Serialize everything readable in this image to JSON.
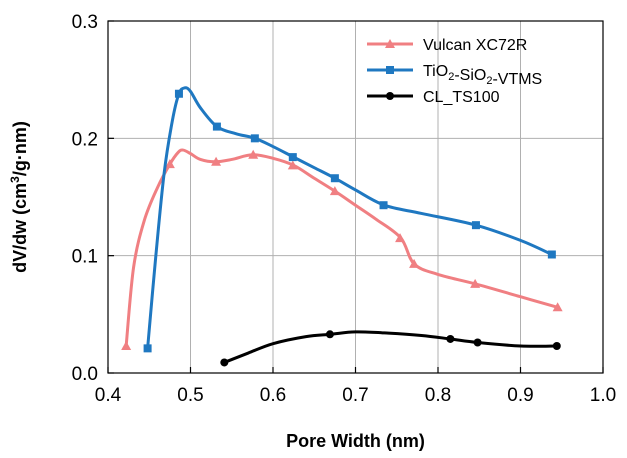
{
  "chart_data": {
    "type": "line",
    "xlabel": "Pore Width (nm)",
    "ylabel_parts": [
      "dV/dw (cm",
      "3",
      "/g·nm)"
    ],
    "xlim": [
      0.4,
      1.0
    ],
    "ylim": [
      0.0,
      0.3
    ],
    "x_ticks": [
      "0.4",
      "0.5",
      "0.6",
      "0.7",
      "0.8",
      "0.9",
      "1.0"
    ],
    "y_ticks": [
      "0.0",
      "0.1",
      "0.2",
      "0.3"
    ],
    "grid": true,
    "legend_position": "top-right",
    "series": [
      {
        "name": "Vulcan XC72R",
        "color": "#f07f82",
        "marker": "triangle",
        "curve": [
          [
            0.422,
            0.023
          ],
          [
            0.431,
            0.09
          ],
          [
            0.444,
            0.13
          ],
          [
            0.46,
            0.158
          ],
          [
            0.475,
            0.178
          ],
          [
            0.485,
            0.188
          ],
          [
            0.491,
            0.19
          ],
          [
            0.5,
            0.187
          ],
          [
            0.512,
            0.182
          ],
          [
            0.53,
            0.18
          ],
          [
            0.55,
            0.182
          ],
          [
            0.575,
            0.186
          ],
          [
            0.6,
            0.183
          ],
          [
            0.625,
            0.177
          ],
          [
            0.65,
            0.166
          ],
          [
            0.675,
            0.155
          ],
          [
            0.7,
            0.143
          ],
          [
            0.725,
            0.131
          ],
          [
            0.755,
            0.115
          ],
          [
            0.771,
            0.093
          ],
          [
            0.8,
            0.084
          ],
          [
            0.845,
            0.076
          ],
          [
            0.9,
            0.065
          ],
          [
            0.945,
            0.056
          ]
        ],
        "markers": [
          [
            0.422,
            0.023
          ],
          [
            0.475,
            0.178
          ],
          [
            0.531,
            0.18
          ],
          [
            0.576,
            0.186
          ],
          [
            0.624,
            0.177
          ],
          [
            0.675,
            0.155
          ],
          [
            0.754,
            0.115
          ],
          [
            0.771,
            0.093
          ],
          [
            0.845,
            0.076
          ],
          [
            0.945,
            0.056
          ]
        ]
      },
      {
        "name": "TiO2-SiO2-VTMS",
        "label_parts": [
          {
            "t": "TiO",
            "sub": false
          },
          {
            "t": "2",
            "sub": true
          },
          {
            "t": "-SiO",
            "sub": false
          },
          {
            "t": "2",
            "sub": true
          },
          {
            "t": "-VTMS",
            "sub": false
          }
        ],
        "color": "#1f78c1",
        "marker": "square",
        "curve": [
          [
            0.448,
            0.021
          ],
          [
            0.458,
            0.1
          ],
          [
            0.468,
            0.17
          ],
          [
            0.478,
            0.215
          ],
          [
            0.486,
            0.238
          ],
          [
            0.493,
            0.243
          ],
          [
            0.5,
            0.24
          ],
          [
            0.512,
            0.226
          ],
          [
            0.532,
            0.21
          ],
          [
            0.555,
            0.204
          ],
          [
            0.578,
            0.2
          ],
          [
            0.6,
            0.193
          ],
          [
            0.625,
            0.184
          ],
          [
            0.65,
            0.175
          ],
          [
            0.675,
            0.166
          ],
          [
            0.7,
            0.156
          ],
          [
            0.735,
            0.143
          ],
          [
            0.78,
            0.136
          ],
          [
            0.846,
            0.126
          ],
          [
            0.9,
            0.113
          ],
          [
            0.938,
            0.101
          ]
        ],
        "markers": [
          [
            0.448,
            0.021
          ],
          [
            0.486,
            0.238
          ],
          [
            0.532,
            0.21
          ],
          [
            0.578,
            0.2
          ],
          [
            0.624,
            0.184
          ],
          [
            0.675,
            0.166
          ],
          [
            0.734,
            0.143
          ],
          [
            0.846,
            0.126
          ],
          [
            0.938,
            0.101
          ]
        ]
      },
      {
        "name": "CL_TS100",
        "color": "#000000",
        "marker": "circle",
        "curve": [
          [
            0.541,
            0.009
          ],
          [
            0.57,
            0.017
          ],
          [
            0.6,
            0.025
          ],
          [
            0.64,
            0.031
          ],
          [
            0.67,
            0.033
          ],
          [
            0.7,
            0.035
          ],
          [
            0.74,
            0.034
          ],
          [
            0.78,
            0.032
          ],
          [
            0.815,
            0.029
          ],
          [
            0.848,
            0.026
          ],
          [
            0.9,
            0.023
          ],
          [
            0.944,
            0.023
          ]
        ],
        "markers": [
          [
            0.541,
            0.009
          ],
          [
            0.669,
            0.033
          ],
          [
            0.815,
            0.029
          ],
          [
            0.848,
            0.026
          ],
          [
            0.944,
            0.023
          ]
        ]
      }
    ]
  }
}
